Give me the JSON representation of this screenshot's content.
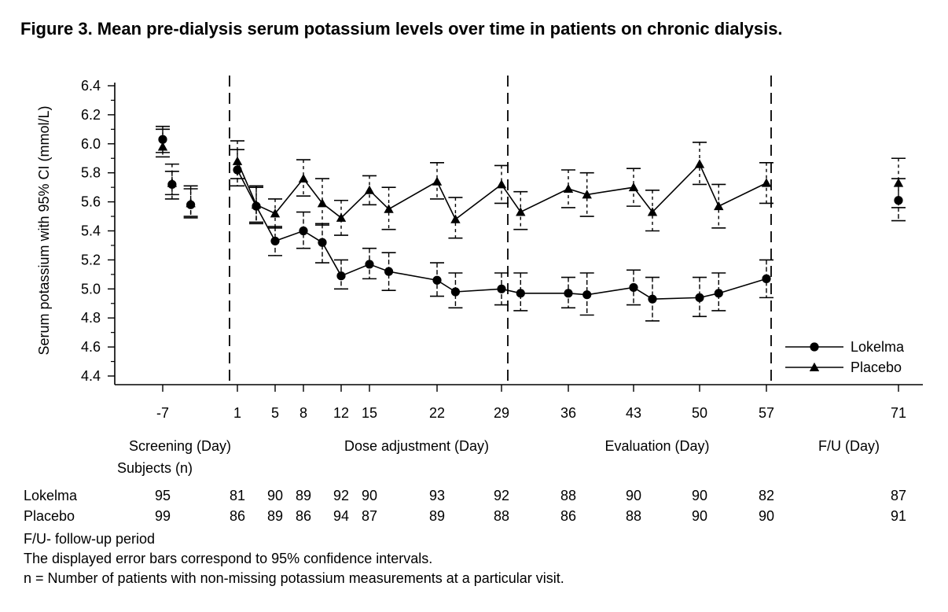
{
  "title": "Figure 3. Mean pre-dialysis serum potassium levels over time in patients on chronic dialysis.",
  "chart_data": {
    "type": "line",
    "title": "Figure 3. Mean pre-dialysis serum potassium levels over time in patients on chronic dialysis.",
    "ylabel": "Serum potassium with 95% CI (mmol/L)",
    "ylim": [
      4.4,
      6.4
    ],
    "yticks": [
      4.4,
      4.6,
      4.8,
      5.0,
      5.2,
      5.4,
      5.6,
      5.8,
      6.0,
      6.2,
      6.4
    ],
    "ytick_labels": [
      "4.4",
      "4.6",
      "4.8",
      "5.0",
      "5.2",
      "5.4",
      "5.6",
      "5.8",
      "6.0",
      "6.2",
      "6.4"
    ],
    "xtick_labels": [
      "-7",
      "1",
      "5",
      "8",
      "12",
      "15",
      "22",
      "29",
      "36",
      "43",
      "50",
      "57",
      "71"
    ],
    "grid": false,
    "legend_position": "bottom-right",
    "phases": [
      "Screening (Day)",
      "Dose adjustment (Day)",
      "Evaluation (Day)",
      "F/U (Day)"
    ],
    "series": [
      {
        "name": "Lokelma",
        "marker": "circle",
        "line_style": "solid",
        "segments": [
          [
            [
              -7,
              6.03,
              5.94,
              6.1
            ]
          ],
          [
            [
              -6,
              5.72,
              5.65,
              5.81
            ]
          ],
          [
            [
              -4,
              5.58,
              5.5,
              5.69
            ]
          ],
          [
            [
              1,
              5.82,
              5.71,
              5.96
            ],
            [
              3,
              5.57,
              5.46,
              5.7
            ],
            [
              5,
              5.33,
              5.23,
              5.43
            ],
            [
              8,
              5.4,
              5.28,
              5.53
            ],
            [
              10,
              5.32,
              5.18,
              5.45
            ],
            [
              12,
              5.09,
              5.0,
              5.2
            ],
            [
              15,
              5.17,
              5.07,
              5.28
            ],
            [
              17,
              5.12,
              4.99,
              5.25
            ],
            [
              22,
              5.06,
              4.95,
              5.18
            ],
            [
              24,
              4.98,
              4.87,
              5.11
            ],
            [
              29,
              5.0,
              4.89,
              5.11
            ],
            [
              31,
              4.97,
              4.85,
              5.11
            ],
            [
              36,
              4.97,
              4.87,
              5.08
            ],
            [
              38,
              4.96,
              4.82,
              5.11
            ],
            [
              43,
              5.01,
              4.89,
              5.13
            ],
            [
              45,
              4.93,
              4.78,
              5.08
            ],
            [
              50,
              4.94,
              4.81,
              5.08
            ],
            [
              52,
              4.97,
              4.85,
              5.11
            ],
            [
              57,
              5.07,
              4.94,
              5.2
            ]
          ],
          [
            [
              71,
              5.61,
              5.47,
              5.76
            ]
          ]
        ]
      },
      {
        "name": "Placebo",
        "marker": "triangle",
        "line_style": "solid",
        "segments": [
          [
            [
              -7,
              5.98,
              5.91,
              6.12
            ]
          ],
          [
            [
              -6,
              5.73,
              5.62,
              5.86
            ]
          ],
          [
            [
              -4,
              5.59,
              5.49,
              5.71
            ]
          ],
          [
            [
              1,
              5.88,
              5.76,
              6.02
            ],
            [
              3,
              5.58,
              5.45,
              5.71
            ],
            [
              5,
              5.52,
              5.42,
              5.62
            ],
            [
              8,
              5.76,
              5.64,
              5.89
            ],
            [
              10,
              5.59,
              5.44,
              5.76
            ],
            [
              12,
              5.49,
              5.37,
              5.61
            ],
            [
              15,
              5.68,
              5.58,
              5.78
            ],
            [
              17,
              5.55,
              5.41,
              5.7
            ],
            [
              22,
              5.74,
              5.62,
              5.87
            ],
            [
              24,
              5.48,
              5.35,
              5.63
            ],
            [
              29,
              5.72,
              5.59,
              5.85
            ],
            [
              31,
              5.53,
              5.41,
              5.67
            ],
            [
              36,
              5.69,
              5.56,
              5.82
            ],
            [
              38,
              5.65,
              5.5,
              5.8
            ],
            [
              43,
              5.7,
              5.57,
              5.83
            ],
            [
              45,
              5.53,
              5.4,
              5.68
            ],
            [
              50,
              5.86,
              5.72,
              6.01
            ],
            [
              52,
              5.57,
              5.42,
              5.72
            ],
            [
              57,
              5.73,
              5.59,
              5.87
            ]
          ],
          [
            [
              71,
              5.73,
              5.56,
              5.9
            ]
          ]
        ]
      }
    ]
  },
  "subjects": {
    "label": "Subjects (n)",
    "days": [
      "-7",
      "1",
      "5",
      "8",
      "12",
      "15",
      "22",
      "29",
      "36",
      "43",
      "50",
      "57",
      "71"
    ],
    "rows": [
      {
        "name": "Lokelma",
        "counts": [
          "95",
          "81",
          "90",
          "89",
          "92",
          "90",
          "93",
          "92",
          "88",
          "90",
          "90",
          "82",
          "87"
        ]
      },
      {
        "name": "Placebo",
        "counts": [
          "99",
          "86",
          "89",
          "86",
          "94",
          "87",
          "89",
          "88",
          "86",
          "88",
          "90",
          "90",
          "91"
        ]
      }
    ]
  },
  "footnotes": [
    "F/U- follow-up period",
    "The displayed error bars correspond to 95% confidence intervals.",
    "n = Number of patients with non-missing potassium measurements at a particular visit."
  ]
}
